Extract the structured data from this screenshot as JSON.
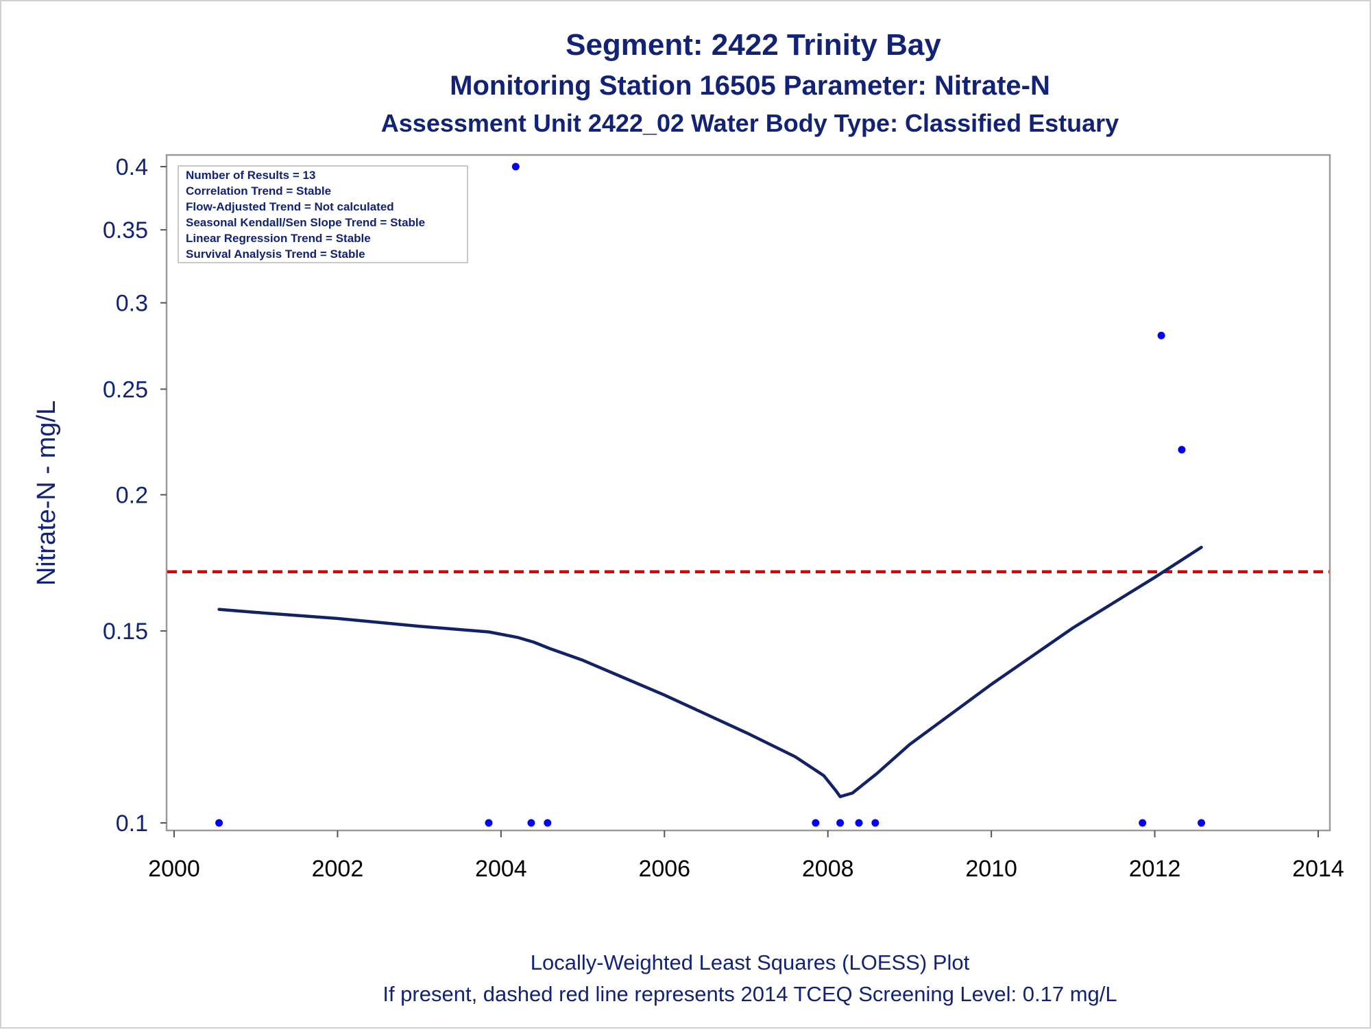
{
  "chart_data": {
    "type": "scatter",
    "titles": [
      "Segment: 2422  Trinity Bay",
      "Monitoring Station 16505 Parameter: Nitrate-N",
      "Assessment Unit 2422_02   Water Body Type: Classified Estuary"
    ],
    "ylabel": "Nitrate-N - mg/L",
    "xlabel": "",
    "y_scale": "log",
    "xlim": [
      2000,
      2014
    ],
    "ylim": [
      0.1,
      0.4
    ],
    "x_ticks": [
      "2000",
      "2002",
      "2004",
      "2006",
      "2008",
      "2010",
      "2012",
      "2014"
    ],
    "y_ticks": [
      "0.1",
      "0.15",
      "0.2",
      "0.25",
      "0.3",
      "0.35",
      "0.4"
    ],
    "legend_lines": [
      "Number of Results = 13",
      "Correlation Trend = Stable",
      "Flow-Adjusted Trend = Not calculated",
      "Seasonal Kendall/Sen Slope Trend = Stable",
      "Linear Regression Trend = Stable",
      "Survival Analysis Trend = Stable"
    ],
    "legend_position": "top-left",
    "footnotes": [
      "Locally-Weighted Least Squares (LOESS) Plot",
      "If present, dashed red line represents 2014 TCEQ Screening Level: 0.17 mg/L"
    ],
    "series": [
      {
        "kind": "points",
        "color": "#0000ff",
        "x": [
          2000.55,
          2003.85,
          2004.18,
          2004.37,
          2004.57,
          2007.85,
          2008.15,
          2008.38,
          2008.58,
          2011.85,
          2012.08,
          2012.33,
          2012.57
        ],
        "y": [
          0.1,
          0.1,
          0.4,
          0.1,
          0.1,
          0.1,
          0.1,
          0.1,
          0.1,
          0.1,
          0.28,
          0.22,
          0.1
        ]
      },
      {
        "kind": "loess",
        "color": "#112266",
        "x": [
          2000.55,
          2001.0,
          2002.0,
          2003.0,
          2003.85,
          2004.2,
          2004.4,
          2004.6,
          2005.0,
          2006.0,
          2007.0,
          2007.6,
          2007.95,
          2008.1,
          2008.15,
          2008.3,
          2008.6,
          2009.0,
          2010.0,
          2011.0,
          2012.0,
          2012.57
        ],
        "y": [
          0.157,
          0.156,
          0.154,
          0.1515,
          0.1497,
          0.148,
          0.1465,
          0.1445,
          0.141,
          0.131,
          0.121,
          0.115,
          0.1105,
          0.107,
          0.1057,
          0.1065,
          0.111,
          0.118,
          0.134,
          0.151,
          0.168,
          0.179
        ]
      }
    ],
    "reference_line": {
      "y": 0.17,
      "color": "#dd0000",
      "style": "dashed"
    }
  }
}
